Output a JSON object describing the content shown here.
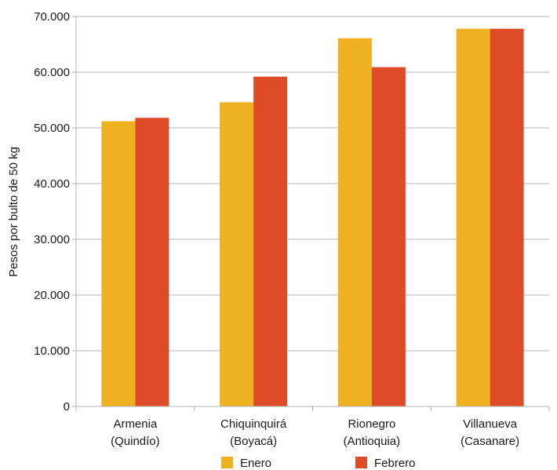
{
  "chart_data": {
    "type": "bar",
    "ylabel": "Pesos por bulto de 50 kg",
    "ylim": [
      0,
      70000
    ],
    "yticks": [
      0,
      10000,
      20000,
      30000,
      40000,
      50000,
      60000,
      70000
    ],
    "ytick_labels": [
      "0",
      "10.000",
      "20.000",
      "30.000",
      "40.000",
      "50.000",
      "60.000",
      "70.000"
    ],
    "categories": [
      {
        "line1": "Armenia",
        "line2": "(Quindío)"
      },
      {
        "line1": "Chiquinquirá",
        "line2": "(Boyacá)"
      },
      {
        "line1": "Rionegro",
        "line2": "(Antioquia)"
      },
      {
        "line1": "Villanueva",
        "line2": "(Casanare)"
      }
    ],
    "series": [
      {
        "name": "Enero",
        "color": "#EFB121",
        "values": [
          51200,
          54600,
          66100,
          67800
        ]
      },
      {
        "name": "Febrero",
        "color": "#DE4B27",
        "values": [
          51800,
          59200,
          60900,
          67800
        ]
      }
    ],
    "grid": true,
    "legend": "bottom-center"
  }
}
